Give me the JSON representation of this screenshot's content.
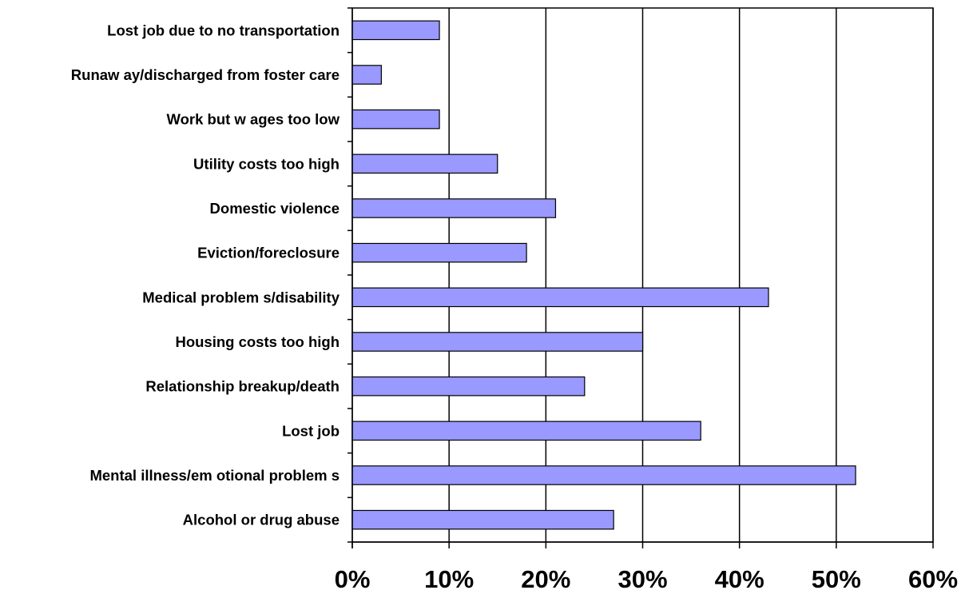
{
  "chart_data": {
    "type": "bar",
    "orientation": "horizontal",
    "categories": [
      "Lost job due to no transportation",
      "Runaw ay/discharged from foster care",
      "Work but w ages too low",
      "Utility costs too high",
      "Domestic violence",
      "Eviction/foreclosure",
      "Medical problem s/disability",
      "Housing costs too high",
      "Relationship breakup/death",
      "Lost job",
      "Mental illness/em otional problem s",
      "Alcohol or drug abuse"
    ],
    "values": [
      9,
      3,
      9,
      15,
      21,
      18,
      43,
      30,
      24,
      36,
      52,
      27
    ],
    "value_unit": "percent",
    "xlim": [
      0,
      60
    ],
    "x_ticks": [
      0,
      10,
      20,
      30,
      40,
      50,
      60
    ],
    "x_tick_labels": [
      "0%",
      "10%",
      "20%",
      "30%",
      "40%",
      "50%",
      "60%"
    ],
    "title": "",
    "xlabel": "",
    "ylabel": "",
    "grid": "vertical major gridlines",
    "legend": "none",
    "colors": {
      "bar_fill": "#9999ff",
      "bar_stroke": "#000000",
      "grid": "#000000",
      "background": "#ffffff"
    }
  }
}
